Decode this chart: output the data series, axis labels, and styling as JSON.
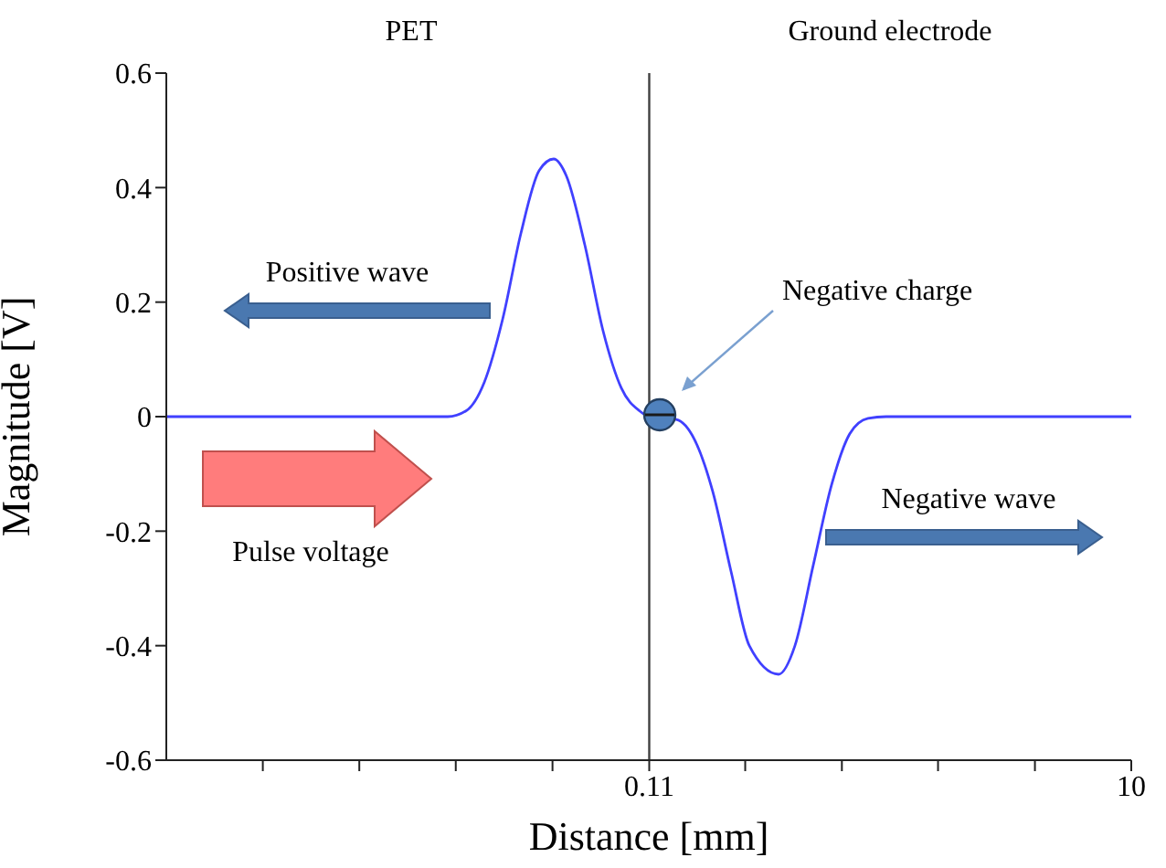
{
  "chart_data": {
    "type": "line",
    "xlabel": "Distance [mm]",
    "ylabel": "Magnitude [V]",
    "log": "x",
    "xlim": [
      0.0012,
      10
    ],
    "xticks": [
      {
        "value": 0.00296,
        "label": null
      },
      {
        "value": 0.0073,
        "label": null
      },
      {
        "value": 0.018,
        "label": null
      },
      {
        "value": 0.0445,
        "label": null
      },
      0.11,
      {
        "value": 0.27,
        "label": null
      },
      {
        "value": 0.667,
        "label": null
      },
      {
        "value": 1.64,
        "label": null
      },
      {
        "value": 4.06,
        "label": null
      },
      10
    ],
    "ylim": [
      -0.6,
      0.6
    ],
    "yticks": [
      -0.6,
      -0.4,
      -0.2,
      0,
      0.2,
      0.4,
      0.6
    ],
    "series": [
      {
        "color": "#4040ff",
        "x": [
          0.0012,
          0.0167,
          0.0198,
          0.0235,
          0.0279,
          0.0331,
          0.0393,
          0.045,
          0.0507,
          0.0602,
          0.0714,
          0.0847,
          0.1005,
          0.11,
          0.1416,
          0.168,
          0.199,
          0.2364,
          0.2805,
          0.369,
          0.43,
          0.51,
          0.605,
          0.718,
          0.852,
          1.01,
          10
        ],
        "values": [
          0,
          0,
          0.01,
          0.06,
          0.17,
          0.32,
          0.43,
          0.45,
          0.42,
          0.3,
          0.15,
          0.05,
          0.01,
          0,
          -0.005,
          -0.04,
          -0.13,
          -0.27,
          -0.4,
          -0.45,
          -0.4,
          -0.26,
          -0.12,
          -0.03,
          -0.003,
          0,
          0
        ]
      }
    ],
    "ref_lines": [
      {
        "axis": "x",
        "value": 0.11,
        "color": "#404040"
      }
    ],
    "annotations": [
      "PET",
      "Ground electrode",
      "Positive wave",
      "Negative charge",
      "Pulse voltage",
      "Negative wave"
    ]
  }
}
